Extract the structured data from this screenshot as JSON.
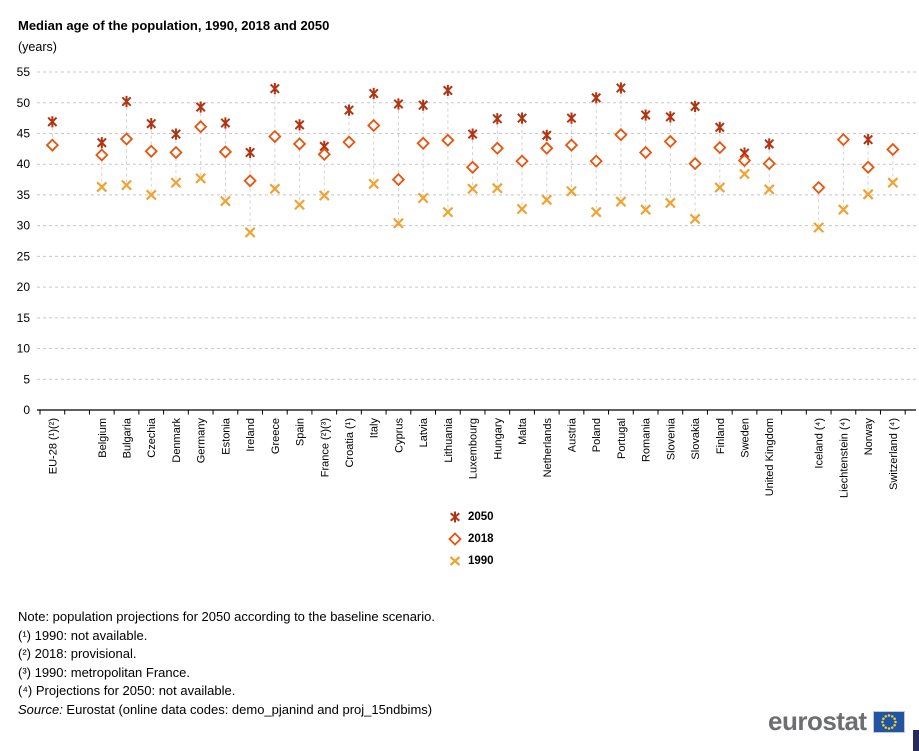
{
  "page": {
    "title": "Median age of the population, 1990, 2018 and 2050",
    "subtitle": "(years)"
  },
  "footnotes": {
    "note": "Note: population projections for 2050 according to the baseline scenario.",
    "fn1": "(¹) 1990: not available.",
    "fn2": "(²) 2018: provisional.",
    "fn3": "(³) 1990: metropolitan France.",
    "fn4": "(⁴) Projections for 2050: not available.",
    "source_label": "Source:",
    "source_rest": " Eurostat (online data codes: demo_pjanind and proj_15ndbims)"
  },
  "logo": {
    "brand": "eurostat"
  },
  "chart_data": {
    "type": "scatter",
    "title": "Median age of the population, 1990, 2018 and 2050",
    "ylabel": "years",
    "ylim": [
      0,
      55
    ],
    "ytick_step": 5,
    "grid": "horizontal-dashed",
    "legend_position": "bottom-center",
    "categories": [
      "EU-28 (¹)(²)",
      "Belgium",
      "Bulgaria",
      "Czechia",
      "Denmark",
      "Germany",
      "Estonia",
      "Ireland",
      "Greece",
      "Spain",
      "France (²)(³)",
      "Croatia (¹)",
      "Italy",
      "Cyprus",
      "Latvia",
      "Lithuania",
      "Luxembourg",
      "Hungary",
      "Malta",
      "Netherlands",
      "Austria",
      "Poland",
      "Portugal",
      "Romania",
      "Slovenia",
      "Slovakia",
      "Finland",
      "Sweden",
      "United Kingdom",
      "Iceland (⁴)",
      "Liechtenstein (⁴)",
      "Norway",
      "Switzerland (⁴)"
    ],
    "spacer_after_indices": [
      0,
      28
    ],
    "series": [
      {
        "name": "2050",
        "marker": "asterisk",
        "color": "#b2330f",
        "values": [
          46.9,
          43.5,
          50.2,
          46.6,
          44.9,
          49.3,
          46.7,
          41.9,
          52.3,
          46.4,
          42.9,
          48.8,
          51.5,
          49.8,
          49.6,
          52.0,
          44.9,
          47.4,
          47.5,
          44.7,
          47.5,
          50.8,
          52.4,
          48.0,
          47.7,
          49.4,
          46.0,
          41.8,
          43.3,
          null,
          null,
          44.0,
          null
        ]
      },
      {
        "name": "2018",
        "marker": "diamond",
        "color": "#e8540e",
        "values": [
          43.1,
          41.5,
          44.1,
          42.1,
          41.9,
          46.1,
          42.0,
          37.3,
          44.5,
          43.3,
          41.6,
          43.6,
          46.3,
          37.5,
          43.4,
          43.9,
          39.5,
          42.6,
          40.5,
          42.6,
          43.1,
          40.5,
          44.8,
          41.9,
          43.7,
          40.1,
          42.7,
          40.6,
          40.1,
          36.2,
          44.0,
          39.5,
          42.4
        ]
      },
      {
        "name": "1990",
        "marker": "x",
        "color": "#f0a232",
        "values": [
          null,
          36.3,
          36.6,
          35.0,
          37.0,
          37.7,
          34.0,
          28.9,
          36.0,
          33.4,
          34.9,
          null,
          36.8,
          30.4,
          34.5,
          32.2,
          36.0,
          36.1,
          32.7,
          34.2,
          35.6,
          32.2,
          33.9,
          32.6,
          33.7,
          31.1,
          36.2,
          38.4,
          35.9,
          29.7,
          32.6,
          35.1,
          37.0
        ]
      }
    ]
  }
}
